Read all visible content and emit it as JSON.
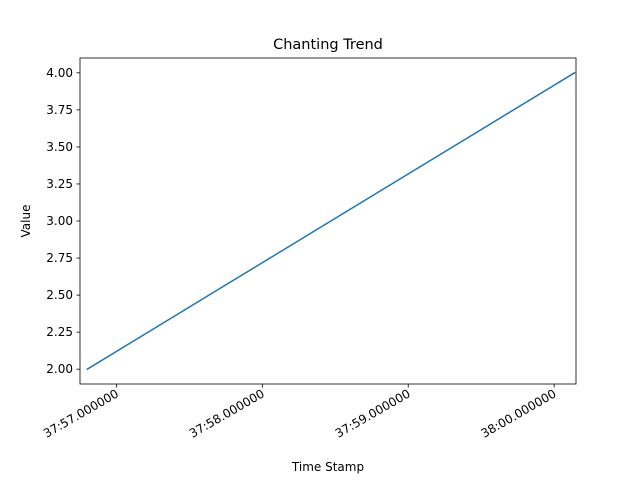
{
  "chart_data": {
    "type": "line",
    "title": "Chanting Trend",
    "xlabel": "Time Stamp",
    "ylabel": "Value",
    "x_axis": {
      "type": "time",
      "range_seconds": [
        56.75,
        60.15
      ],
      "ticks": [
        {
          "value": 57,
          "label": "37:57.000000"
        },
        {
          "value": 58,
          "label": "37:58.000000"
        },
        {
          "value": 59,
          "label": "37:59.000000"
        },
        {
          "value": 60,
          "label": "38:00.000000"
        }
      ]
    },
    "y_axis": {
      "range": [
        1.9,
        4.1
      ],
      "ticks": [
        {
          "value": 2.0,
          "label": "2.00"
        },
        {
          "value": 2.25,
          "label": "2.25"
        },
        {
          "value": 2.5,
          "label": "2.50"
        },
        {
          "value": 2.75,
          "label": "2.75"
        },
        {
          "value": 3.0,
          "label": "3.00"
        },
        {
          "value": 3.25,
          "label": "3.25"
        },
        {
          "value": 3.5,
          "label": "3.50"
        },
        {
          "value": 3.75,
          "label": "3.75"
        },
        {
          "value": 4.0,
          "label": "4.00"
        }
      ]
    },
    "grid": false,
    "series": [
      {
        "color": "#1f77b4",
        "points": [
          {
            "x": 56.8,
            "y": 2.0
          },
          {
            "x": 60.14,
            "y": 4.0
          }
        ]
      }
    ]
  }
}
